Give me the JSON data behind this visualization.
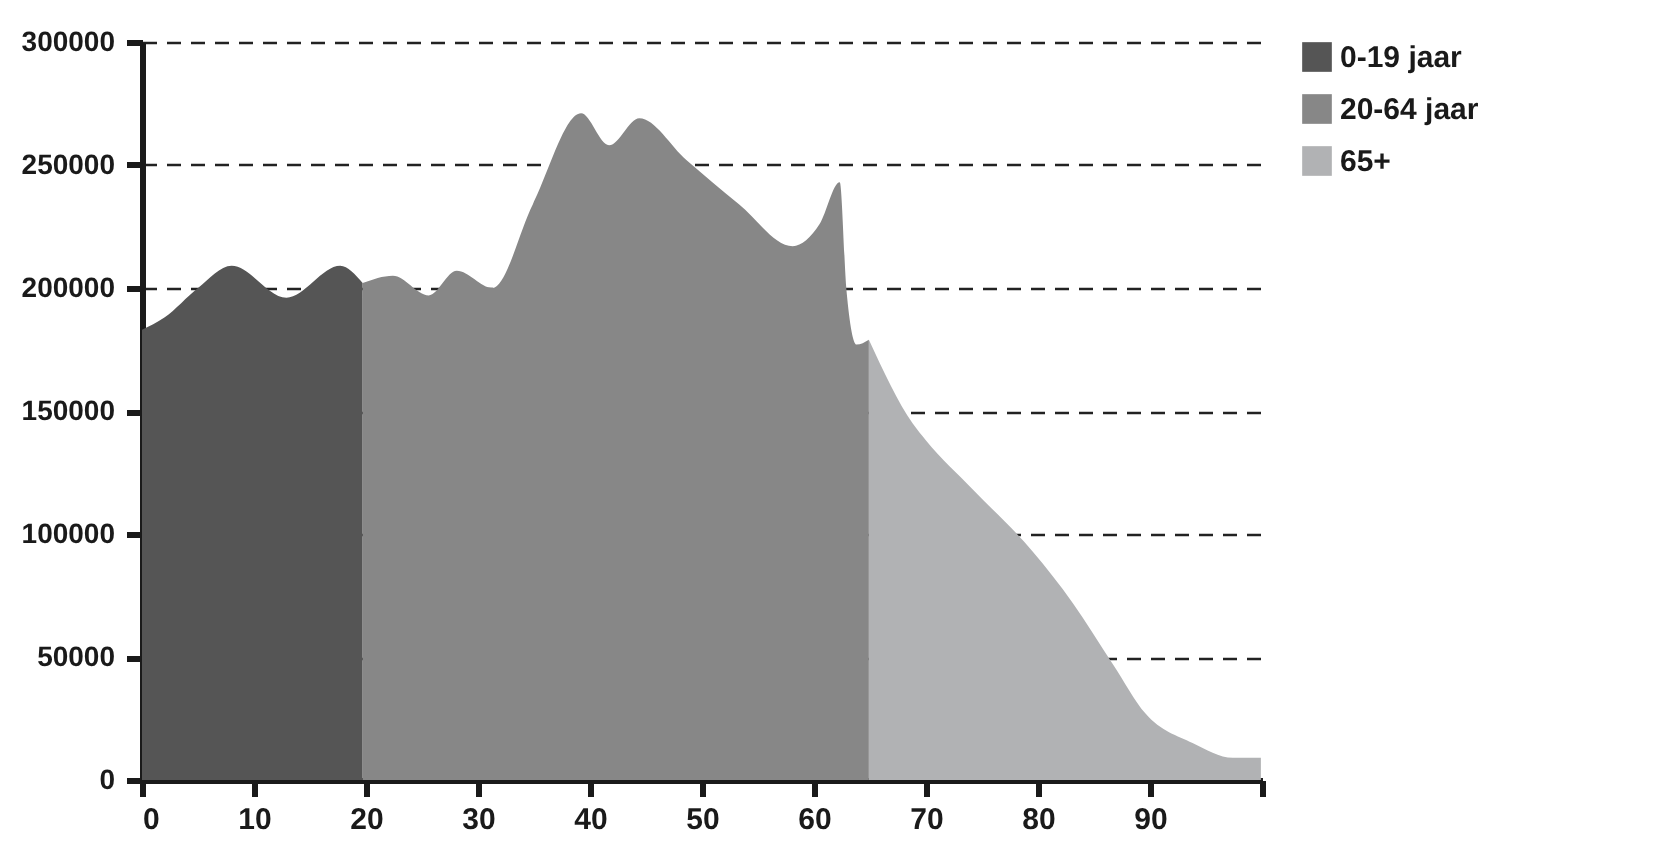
{
  "chart_data": {
    "type": "area",
    "xlim": [
      0,
      100
    ],
    "ylim": [
      0,
      300000
    ],
    "xticks": [
      0,
      10,
      20,
      30,
      40,
      50,
      60,
      70,
      80,
      90,
      {
        "value": 100,
        "label": null
      }
    ],
    "yticks": [
      0,
      50000,
      100000,
      150000,
      200000,
      250000,
      300000
    ],
    "grid": "y",
    "legend": "right",
    "series": [
      {
        "name": "0-19 jaar",
        "color": "#555555",
        "x": [
          0,
          2,
          5,
          8,
          12.9,
          17.7,
          19.7
        ],
        "values": [
          183000,
          188000,
          200000,
          209000,
          196000,
          209000,
          202000
        ]
      },
      {
        "name": "20-64 jaar",
        "color": "#878787",
        "x": [
          19.7,
          22.4,
          25.6,
          28.1,
          31.3,
          34.9,
          39.2,
          41.7,
          44.4,
          48.6,
          53.3,
          58.1,
          60.5,
          62.3,
          62.9,
          63.8,
          64.9
        ],
        "values": [
          202000,
          205000,
          197000,
          207000,
          200000,
          234000,
          271000,
          258000,
          269000,
          252000,
          234000,
          217000,
          226000,
          243000,
          199000,
          177000,
          179000
        ]
      },
      {
        "name": "65+",
        "color": "#b1b2b4",
        "x": [
          64.9,
          68.8,
          70,
          74.2,
          79.5,
          83.1,
          86.7,
          89.6,
          93.8,
          97.4,
          99.9
        ],
        "values": [
          179000,
          145000,
          138000,
          118000,
          93000,
          72000,
          47000,
          27000,
          15000,
          9000,
          9000
        ]
      }
    ]
  }
}
